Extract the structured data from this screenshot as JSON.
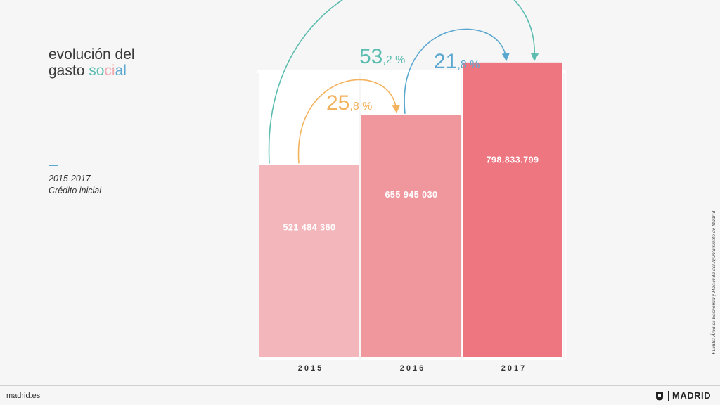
{
  "title": {
    "line1": "evolución del",
    "line2_a": "gasto ",
    "line2_b1": "so",
    "line2_b2": "ci",
    "line2_b3": "al"
  },
  "subtitle": {
    "period": "2015-2017",
    "label": "Crédito inicial"
  },
  "source": "Fuente: Área de Economía y Hacienda del Ayuntamiento de Madrid",
  "footer": {
    "site": "madrid.es",
    "brand": "MADRID"
  },
  "colors": {
    "bar2015": "#f3b7bb",
    "bar2016": "#f0979e",
    "bar2017": "#ee7680",
    "teal": "#5bbcb0",
    "orange": "#f2b25e",
    "blue": "#5aa7d0"
  },
  "chart_data": {
    "type": "bar",
    "categories": [
      "2015",
      "2016",
      "2017"
    ],
    "values": [
      521484360,
      655945030,
      798833799
    ],
    "value_labels": [
      "521 484 360",
      "655 945 030",
      "798.833.799"
    ],
    "ylim": [
      0,
      850000000
    ],
    "grid": false,
    "annotations": [
      {
        "from": "2015",
        "to": "2016",
        "big": "25",
        "small": ",8 %",
        "color": "orange"
      },
      {
        "from": "2016",
        "to": "2017",
        "big": "21",
        "small": ",8 %",
        "color": "blue"
      },
      {
        "from": "2015",
        "to": "2017",
        "big": "53",
        "small": ",2 %",
        "color": "teal"
      }
    ]
  }
}
